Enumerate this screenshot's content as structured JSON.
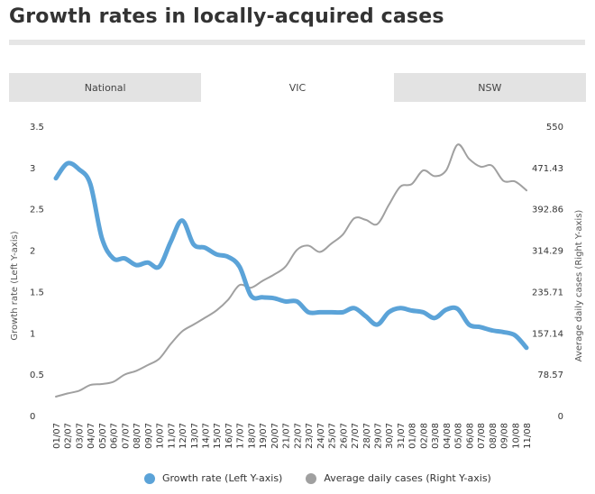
{
  "page": {
    "title": "Growth rates in locally-acquired cases"
  },
  "tabs": [
    {
      "label": "National",
      "active": false
    },
    {
      "label": "VIC",
      "active": true
    },
    {
      "label": "NSW",
      "active": false
    }
  ],
  "colors": {
    "growth": "#5ba3d8",
    "average": "#a0a0a0"
  },
  "chart_data": {
    "type": "line",
    "title": "Growth rates in locally-acquired cases",
    "categories": [
      "01/07",
      "02/07",
      "03/07",
      "04/07",
      "05/07",
      "06/07",
      "07/07",
      "08/07",
      "09/07",
      "10/07",
      "11/07",
      "12/07",
      "13/07",
      "14/07",
      "15/07",
      "16/07",
      "17/07",
      "18/07",
      "19/07",
      "20/07",
      "21/07",
      "22/07",
      "23/07",
      "24/07",
      "25/07",
      "26/07",
      "27/07",
      "28/07",
      "29/07",
      "30/07",
      "31/07",
      "01/08",
      "02/08",
      "03/08",
      "04/08",
      "05/08",
      "06/08",
      "07/08",
      "08/08",
      "09/08",
      "10/08",
      "11/08"
    ],
    "left_axis": {
      "label": "Growth rate (Left Y-axis)",
      "ylim": [
        0,
        3.5
      ],
      "ticks": [
        "0",
        "0.5",
        "1",
        "1.5",
        "2",
        "2.5",
        "3",
        "3.5"
      ]
    },
    "right_axis": {
      "label": "Average daily cases (Right Y-axis)",
      "ylim": [
        0,
        550
      ],
      "ticks": [
        "0",
        "78.57",
        "157.14",
        "235.71",
        "314.29",
        "392.86",
        "471.43",
        "550"
      ]
    },
    "series": [
      {
        "name": "Growth rate (Left Y-axis)",
        "axis": "left",
        "values": [
          2.87,
          3.05,
          2.98,
          2.8,
          2.15,
          1.9,
          1.9,
          1.82,
          1.85,
          1.8,
          2.1,
          2.36,
          2.07,
          2.03,
          1.95,
          1.92,
          1.8,
          1.45,
          1.43,
          1.42,
          1.38,
          1.38,
          1.25,
          1.25,
          1.25,
          1.25,
          1.3,
          1.2,
          1.1,
          1.25,
          1.3,
          1.27,
          1.25,
          1.18,
          1.28,
          1.29,
          1.1,
          1.07,
          1.03,
          1.01,
          0.97,
          0.82
        ]
      },
      {
        "name": "Average daily cases (Right Y-axis)",
        "axis": "right",
        "values": [
          36,
          42,
          47,
          58,
          60,
          64,
          78,
          85,
          96,
          108,
          136,
          160,
          173,
          186,
          200,
          220,
          248,
          243,
          256,
          268,
          283,
          315,
          323,
          311,
          327,
          344,
          375,
          372,
          364,
          400,
          435,
          440,
          466,
          455,
          466,
          515,
          488,
          473,
          475,
          446,
          445,
          428
        ]
      }
    ],
    "legend": [
      "Growth rate (Left Y-axis)",
      "Average daily cases (Right Y-axis)"
    ]
  }
}
